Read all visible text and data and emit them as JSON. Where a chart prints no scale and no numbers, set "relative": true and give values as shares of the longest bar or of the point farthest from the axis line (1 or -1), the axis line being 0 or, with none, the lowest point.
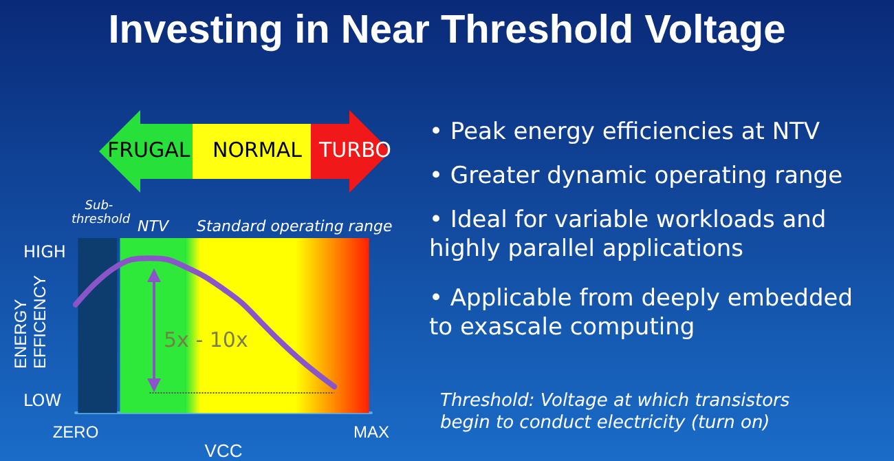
{
  "chart_data": {
    "type": "line",
    "title": "Investing in Near Threshold Voltage",
    "xlabel": "VCC",
    "ylabel": "ENERGY EFFICENCY",
    "relative": true,
    "categories": [
      "ZERO",
      null,
      null,
      null,
      null,
      null,
      null,
      null,
      null,
      null,
      null,
      null,
      null,
      null,
      null,
      null,
      "MAX"
    ],
    "series": [
      {
        "color": "#8a55c8",
        "values": [
          0.7,
          0.83,
          0.93,
          0.99,
          1.0,
          0.99,
          0.94,
          0.88,
          0.8,
          0.71,
          0.59,
          0.47,
          0.36,
          0.26,
          0.17,
          null,
          null
        ]
      }
    ],
    "ref_lines": [
      {
        "axis": "y",
        "value": 0.13,
        "line_style": "dotted",
        "color": "#555555"
      }
    ],
    "annotations": [
      "FRUGAL",
      "NORMAL",
      "TURBO",
      "HIGH",
      "LOW",
      "5x - 10x",
      "• Peak energy efficiencies at NTV",
      "• Greater dynamic operating range",
      "• Ideal for variable workloads and highly parallel applications",
      "• Applicable from deeply embedded to exascale computing",
      "Threshold: Voltage at which transistors begin to conduct electricity (turn on)",
      "Sub-threshold",
      "NTV",
      "Standard operating range"
    ]
  }
}
